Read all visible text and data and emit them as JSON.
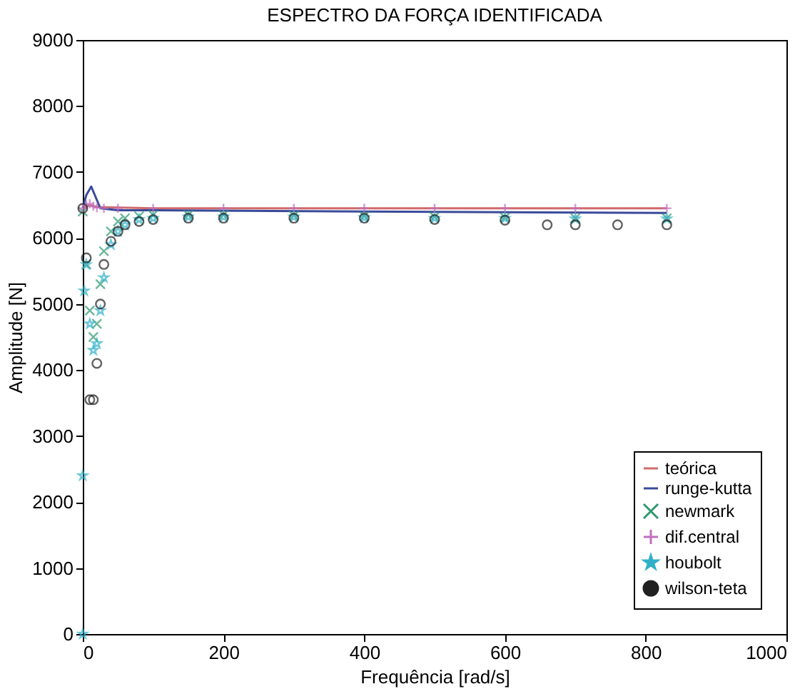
{
  "chart_data": {
    "type": "line",
    "title": "ESPECTRO DA FORÇA IDENTIFICADA",
    "xlabel": "Frequência  [rad/s]",
    "ylabel": "Amplitude [N]",
    "xlim": [
      0,
      1000
    ],
    "xticks": [
      0,
      200,
      400,
      600,
      800,
      1000
    ],
    "ylim": [
      0,
      9000
    ],
    "yticks": [
      0,
      1000,
      2000,
      3000,
      4000,
      5000,
      6000,
      7000,
      8000,
      9000
    ],
    "grid": false,
    "legend": "bottom right",
    "series": [
      {
        "name": "teórica",
        "marker": "none",
        "color": "#d06a6a",
        "x": [
          0,
          10,
          20,
          100,
          400,
          830
        ],
        "values": [
          6450,
          6500,
          6470,
          6450,
          6450,
          6450
        ]
      },
      {
        "name": "runge-kutta",
        "marker": "none",
        "color": "#3a4a9a",
        "x": [
          0,
          5,
          12,
          25,
          50,
          100,
          400,
          830
        ],
        "values": [
          6450,
          6650,
          6780,
          6450,
          6420,
          6420,
          6400,
          6380
        ]
      },
      {
        "name": "newmark",
        "type": "scatter",
        "marker": "cross",
        "color": "#2e9a6e",
        "x": [
          0,
          5,
          10,
          15,
          20,
          25,
          30,
          40,
          50,
          60,
          80,
          100,
          150,
          200,
          300,
          400,
          500,
          600,
          700,
          830
        ],
        "values": [
          6400,
          5600,
          4900,
          4500,
          4700,
          5300,
          5800,
          6100,
          6250,
          6300,
          6330,
          6350,
          6350,
          6350,
          6340,
          6330,
          6320,
          6310,
          6300,
          6300
        ]
      },
      {
        "name": "dif.central",
        "type": "scatter",
        "marker": "plus",
        "color": "#c070c0",
        "x": [
          0,
          5,
          10,
          15,
          20,
          30,
          50,
          100,
          200,
          300,
          400,
          500,
          600,
          700,
          830
        ],
        "values": [
          6450,
          6500,
          6520,
          6480,
          6460,
          6450,
          6450,
          6450,
          6450,
          6450,
          6450,
          6450,
          6450,
          6450,
          6450
        ]
      },
      {
        "name": "houbolt",
        "type": "scatter",
        "marker": "star",
        "color": "#30b0c8",
        "x": [
          0,
          0,
          2,
          5,
          10,
          15,
          20,
          25,
          30,
          40,
          50,
          60,
          80,
          100,
          150,
          200,
          300,
          400,
          500,
          600,
          700,
          830
        ],
        "values": [
          0,
          2400,
          5200,
          5600,
          4700,
          4300,
          4400,
          4900,
          5400,
          5900,
          6100,
          6200,
          6280,
          6300,
          6320,
          6320,
          6320,
          6310,
          6300,
          6300,
          6290,
          6290
        ]
      },
      {
        "name": "wilson-teta",
        "type": "scatter",
        "marker": "circle",
        "color": "#202020",
        "x": [
          0,
          5,
          10,
          15,
          20,
          25,
          30,
          40,
          50,
          60,
          80,
          100,
          150,
          200,
          300,
          400,
          500,
          600,
          660,
          700,
          760,
          830
        ],
        "values": [
          6450,
          5700,
          3550,
          3550,
          4100,
          5000,
          5600,
          5950,
          6100,
          6200,
          6250,
          6280,
          6300,
          6300,
          6300,
          6300,
          6280,
          6270,
          6200,
          6200,
          6200,
          6200
        ]
      }
    ]
  }
}
